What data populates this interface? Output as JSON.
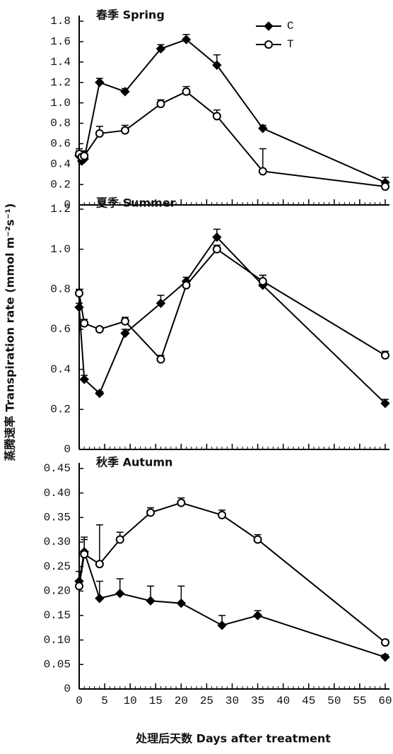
{
  "chart_data": [
    {
      "type": "line",
      "title": "春季 Spring",
      "x": [
        0,
        0.5,
        1,
        4,
        9,
        16,
        21,
        27,
        36,
        60
      ],
      "xlim": [
        0,
        60
      ],
      "xticks": [
        0,
        5,
        10,
        15,
        20,
        25,
        30,
        35,
        40,
        45,
        50,
        55,
        60
      ],
      "ylim": [
        0,
        1.8
      ],
      "yticks": [
        0,
        0.2,
        0.4,
        0.6,
        0.8,
        {
          "value": 1,
          "label": "1.0"
        },
        1.2,
        1.4,
        1.6,
        1.8
      ],
      "series": [
        {
          "name": "C",
          "color": "#000000",
          "marker": "diamond",
          "values": [
            0.48,
            0.43,
            0.45,
            1.2,
            1.11,
            1.53,
            1.62,
            1.37,
            0.75,
            0.22
          ],
          "errors": [
            0.05,
            0.04,
            0.05,
            0.04,
            0.03,
            0.04,
            0.05,
            0.1,
            0.03,
            0.05
          ]
        },
        {
          "name": "T",
          "color": "#000000",
          "marker": "circle",
          "values": [
            0.5,
            0.47,
            0.48,
            0.7,
            0.73,
            0.99,
            1.11,
            0.87,
            0.33,
            0.18
          ],
          "errors": [
            0.05,
            0.05,
            0.05,
            0.07,
            0.05,
            0.04,
            0.05,
            0.06,
            0.22,
            0.03
          ]
        }
      ],
      "legend": "upper right"
    },
    {
      "type": "line",
      "title": "夏季 Summer",
      "x": [
        0,
        1,
        4,
        9,
        16,
        21,
        27,
        36,
        60
      ],
      "xlim": [
        0,
        60
      ],
      "xticks": [
        0,
        5,
        10,
        15,
        20,
        25,
        30,
        35,
        40,
        45,
        50,
        55,
        60
      ],
      "ylim": [
        0,
        1.2
      ],
      "yticks": [
        0,
        0.2,
        0.4,
        0.6,
        0.8,
        {
          "value": 1,
          "label": "1.0"
        },
        1.2
      ],
      "series": [
        {
          "name": "C",
          "color": "#000000",
          "marker": "diamond",
          "values": [
            0.71,
            0.35,
            0.28,
            0.58,
            0.73,
            0.84,
            1.06,
            0.82,
            0.23
          ],
          "errors": [
            0.02,
            0.02,
            0.01,
            0.02,
            0.04,
            0.02,
            0.04,
            0.05,
            0.02
          ]
        },
        {
          "name": "T",
          "color": "#000000",
          "marker": "circle",
          "values": [
            0.78,
            0.63,
            0.6,
            0.64,
            0.45,
            0.82,
            1,
            0.84,
            0.47
          ],
          "errors": [
            0.02,
            0.02,
            0.01,
            0.02,
            0.02,
            0.02,
            0.02,
            0.03,
            0.02
          ]
        }
      ]
    },
    {
      "type": "line",
      "title": "秋季 Autumn",
      "x": [
        0,
        1,
        4,
        8,
        14,
        20,
        28,
        35,
        60
      ],
      "xlim": [
        0,
        60
      ],
      "xticks": [
        0,
        5,
        10,
        15,
        20,
        25,
        30,
        35,
        40,
        45,
        50,
        55,
        60
      ],
      "ylim": [
        0,
        0.45
      ],
      "yticks": [
        0,
        0.05,
        {
          "value": 0.1,
          "label": "0.10"
        },
        0.15,
        {
          "value": 0.2,
          "label": "0.20"
        },
        0.25,
        {
          "value": 0.3,
          "label": "0.30"
        },
        0.35,
        {
          "value": 0.4,
          "label": "0.40"
        },
        0.45
      ],
      "xlabel": "处理后天数 Days after treatment",
      "ylabel": "蒸腾速率 Transpiration rate (mmol m⁻²s⁻¹)",
      "series": [
        {
          "name": "C",
          "color": "#000000",
          "marker": "diamond",
          "values": [
            0.22,
            0.28,
            0.185,
            0.195,
            0.18,
            0.175,
            0.13,
            0.15,
            0.065
          ],
          "errors": [
            0.02,
            0.03,
            0.035,
            0.03,
            0.03,
            0.035,
            0.02,
            0.01,
            0.005
          ]
        },
        {
          "name": "T",
          "color": "#000000",
          "marker": "circle",
          "values": [
            0.21,
            0.275,
            0.255,
            0.305,
            0.36,
            0.38,
            0.355,
            0.305,
            0.095
          ],
          "errors": [
            0.01,
            0.03,
            0.08,
            0.015,
            0.01,
            0.01,
            0.01,
            0.01,
            0.005
          ]
        }
      ]
    }
  ]
}
